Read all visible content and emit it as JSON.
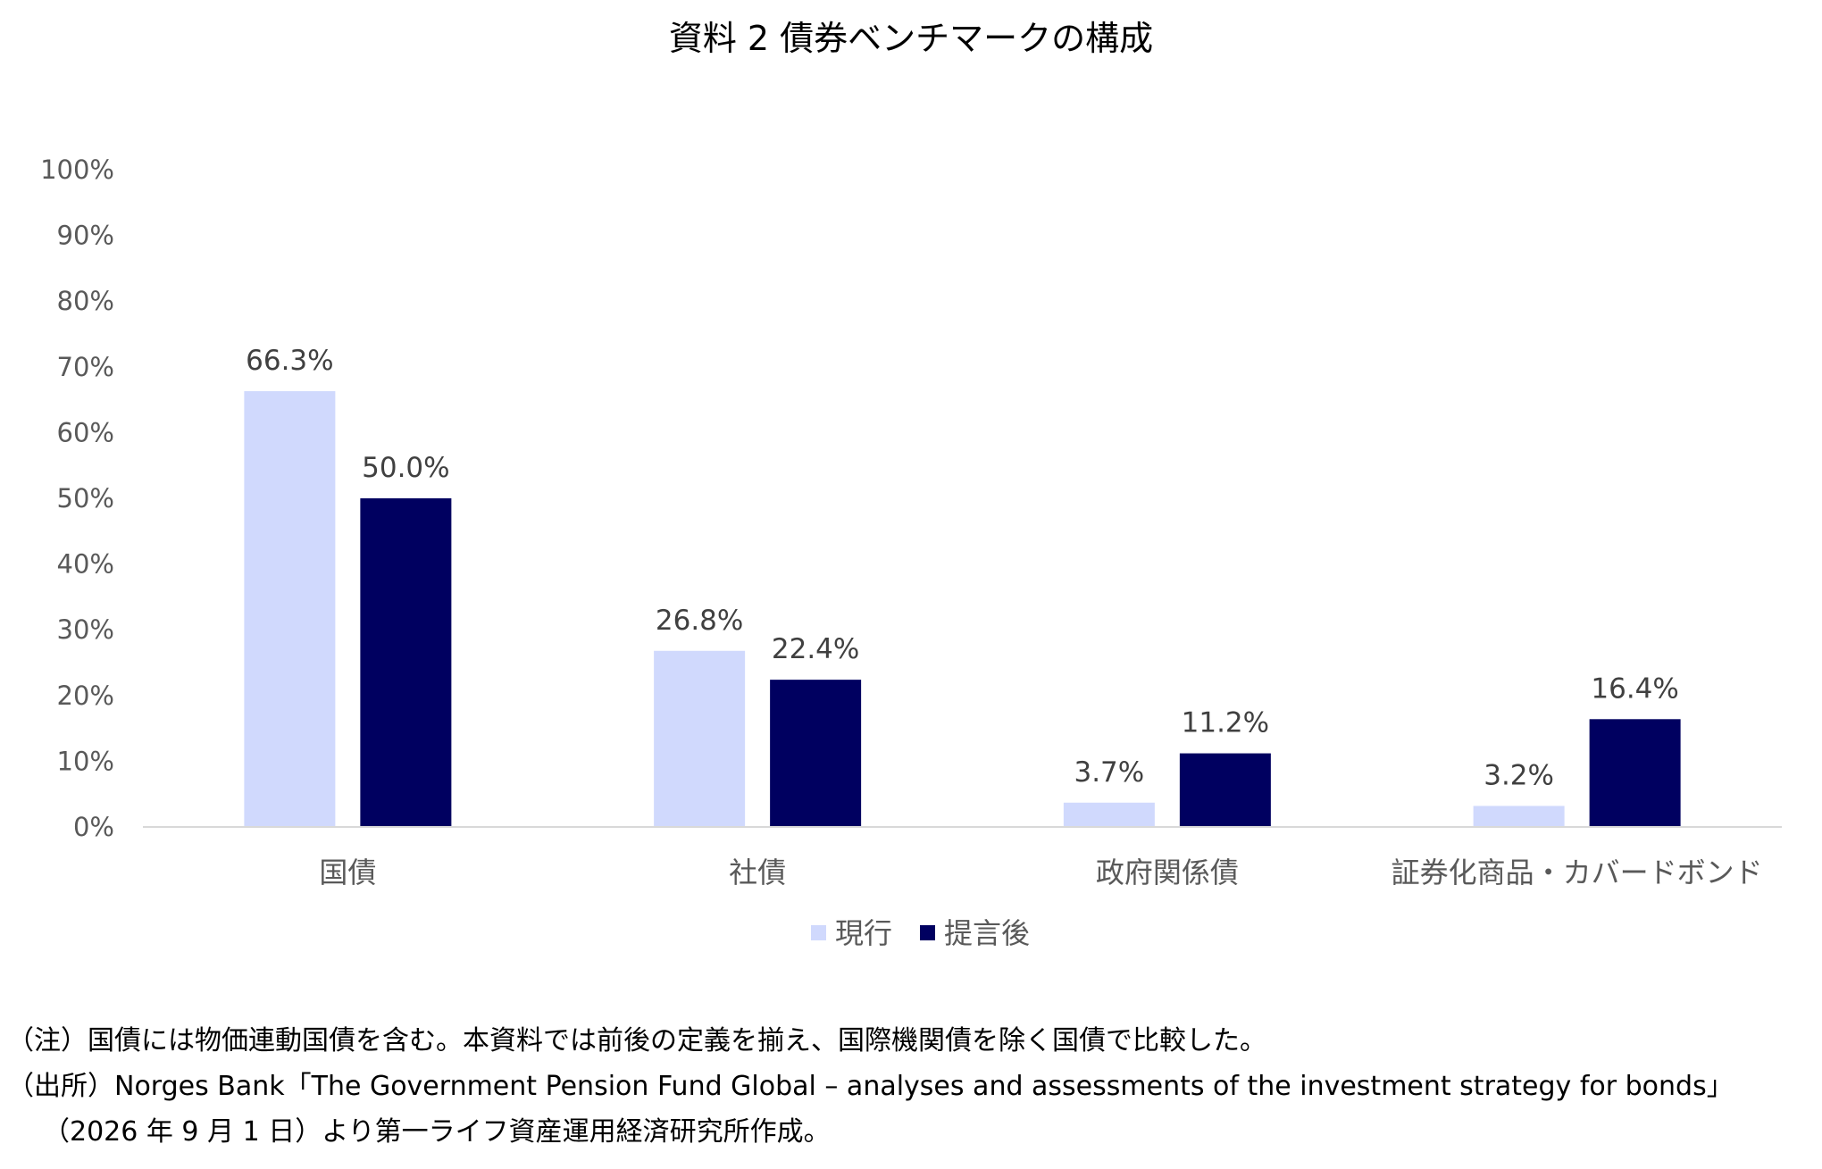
{
  "chart_data": {
    "type": "bar",
    "title": "資料 2  債券ベンチマークの構成",
    "categories": [
      "国債",
      "社債",
      "政府関係債",
      "証券化商品・カバードボンド"
    ],
    "series": [
      {
        "name": "現行",
        "color": "#d0d9fd",
        "values": [
          66.3,
          26.8,
          3.7,
          3.2
        ],
        "labels": [
          "66.3%",
          "26.8%",
          "3.7%",
          "3.2%"
        ]
      },
      {
        "name": "提言後",
        "color": "#000060",
        "values": [
          50.0,
          22.4,
          11.2,
          16.4
        ],
        "labels": [
          "50.0%",
          "22.4%",
          "11.2%",
          "16.4%"
        ]
      }
    ],
    "ylim": [
      0,
      100
    ],
    "yticks": [
      "0%",
      "10%",
      "20%",
      "30%",
      "40%",
      "50%",
      "60%",
      "70%",
      "80%",
      "90%",
      "100%"
    ],
    "grid": false,
    "legend": "bottom"
  },
  "notes": [
    "（注）国債には物価連動国債を含む。本資料では前後の定義を揃え、国際機関債を除く国債で比較した。",
    "（出所）Norges Bank「The Government Pension Fund Global – analyses and assessments of the investment strategy for bonds」",
    "（2026 年 9 月 1 日）より第一ライフ資産運用経済研究所作成。"
  ]
}
